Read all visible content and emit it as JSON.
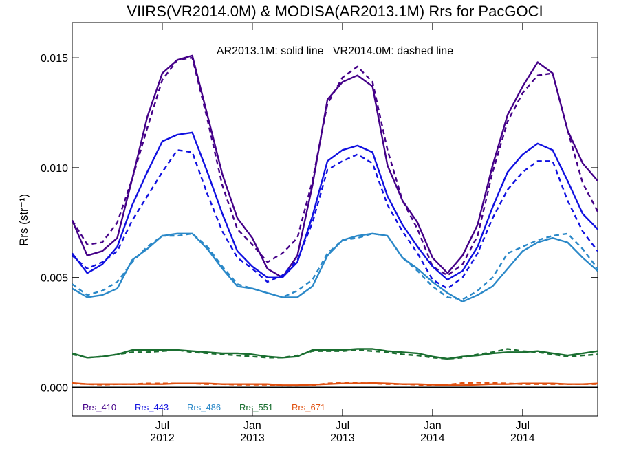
{
  "chart_data": {
    "type": "line",
    "title": "VIIRS(VR2014.0M) & MODISA(AR2013.1M)  Rrs for PacGOCI",
    "annotation": "AR2013.1M: solid line   VR2014.0M: dashed line",
    "ylabel": "Rrs (str⁻¹)",
    "ylim": [
      -0.0013,
      0.0166
    ],
    "yticks": [
      "0.000",
      "0.005",
      "0.010",
      "0.015"
    ],
    "ytick_values": [
      0,
      0.005,
      0.01,
      0.015
    ],
    "x": [
      "2012-01",
      "2012-02",
      "2012-03",
      "2012-04",
      "2012-05",
      "2012-06",
      "2012-07",
      "2012-08",
      "2012-09",
      "2012-10",
      "2012-11",
      "2012-12",
      "2013-01",
      "2013-02",
      "2013-03",
      "2013-04",
      "2013-05",
      "2013-06",
      "2013-07",
      "2013-08",
      "2013-09",
      "2013-10",
      "2013-11",
      "2013-12",
      "2014-01",
      "2014-02",
      "2014-03",
      "2014-04",
      "2014-05",
      "2014-06",
      "2014-07",
      "2014-08",
      "2014-09",
      "2014-10",
      "2014-11",
      "2014-12"
    ],
    "xlim": [
      "2012-01",
      "2014-12"
    ],
    "xticks": [
      {
        "month": "Jul",
        "year": "2012",
        "x": "2012-07"
      },
      {
        "month": "Jan",
        "year": "2013",
        "x": "2013-01"
      },
      {
        "month": "Jul",
        "year": "2013",
        "x": "2013-07"
      },
      {
        "month": "Jan",
        "year": "2014",
        "x": "2014-01"
      },
      {
        "month": "Jul",
        "year": "2014",
        "x": "2014-07"
      }
    ],
    "series": [
      {
        "name": "Rrs_410",
        "color": "#440088",
        "style": "solid",
        "values": [
          0.0076,
          0.006,
          0.0062,
          0.0068,
          0.0095,
          0.0123,
          0.0143,
          0.0149,
          0.0151,
          0.0124,
          0.0097,
          0.0077,
          0.0068,
          0.0054,
          0.005,
          0.006,
          0.0092,
          0.0131,
          0.0139,
          0.0142,
          0.0137,
          0.0101,
          0.0085,
          0.0075,
          0.0059,
          0.0052,
          0.006,
          0.0074,
          0.0101,
          0.0124,
          0.0137,
          0.0148,
          0.0143,
          0.0117,
          0.0102,
          0.0094
        ]
      },
      {
        "name": "Rrs_410",
        "color": "#440088",
        "style": "dashed",
        "values": [
          0.0076,
          0.0065,
          0.0066,
          0.0075,
          0.0095,
          0.0118,
          0.014,
          0.0149,
          0.015,
          0.0122,
          0.0092,
          0.0072,
          0.0065,
          0.0057,
          0.0061,
          0.0068,
          0.0094,
          0.0129,
          0.0141,
          0.0146,
          0.0139,
          0.0108,
          0.0085,
          0.0072,
          0.0055,
          0.0051,
          0.0056,
          0.0069,
          0.0098,
          0.0121,
          0.0134,
          0.0142,
          0.0143,
          0.0117,
          0.0093,
          0.008
        ]
      },
      {
        "name": "Rrs_443",
        "color": "#1010e0",
        "style": "solid",
        "values": [
          0.0061,
          0.0052,
          0.0056,
          0.0064,
          0.0083,
          0.0098,
          0.0112,
          0.0115,
          0.0116,
          0.0098,
          0.0079,
          0.0062,
          0.0055,
          0.005,
          0.005,
          0.0057,
          0.0078,
          0.0103,
          0.0108,
          0.011,
          0.0107,
          0.0087,
          0.0074,
          0.0064,
          0.0055,
          0.0049,
          0.0053,
          0.0064,
          0.0082,
          0.0098,
          0.0106,
          0.0111,
          0.0108,
          0.0094,
          0.0079,
          0.0072
        ]
      },
      {
        "name": "Rrs_443",
        "color": "#1010e0",
        "style": "dashed",
        "values": [
          0.006,
          0.0054,
          0.0057,
          0.0062,
          0.0076,
          0.0087,
          0.0098,
          0.0108,
          0.0107,
          0.0088,
          0.0071,
          0.0059,
          0.0054,
          0.0048,
          0.0051,
          0.0058,
          0.0075,
          0.0099,
          0.0103,
          0.0106,
          0.0102,
          0.0083,
          0.0071,
          0.0061,
          0.0049,
          0.0045,
          0.005,
          0.0061,
          0.0077,
          0.009,
          0.0098,
          0.0103,
          0.0103,
          0.0085,
          0.0071,
          0.0062
        ]
      },
      {
        "name": "Rrs_486",
        "color": "#2a88c8",
        "style": "solid",
        "values": [
          0.0045,
          0.0041,
          0.0042,
          0.0045,
          0.0058,
          0.0063,
          0.0069,
          0.007,
          0.007,
          0.0063,
          0.0054,
          0.0046,
          0.0045,
          0.0043,
          0.0041,
          0.0041,
          0.0046,
          0.006,
          0.0067,
          0.0069,
          0.007,
          0.0069,
          0.0059,
          0.0054,
          0.0048,
          0.0043,
          0.0039,
          0.0042,
          0.0046,
          0.0054,
          0.0062,
          0.0066,
          0.0068,
          0.0066,
          0.0059,
          0.0053
        ]
      },
      {
        "name": "Rrs_486",
        "color": "#2a88c8",
        "style": "dashed",
        "values": [
          0.0047,
          0.0042,
          0.0044,
          0.0048,
          0.0057,
          0.0064,
          0.0069,
          0.0069,
          0.007,
          0.0064,
          0.0055,
          0.0047,
          0.0045,
          0.0043,
          0.0041,
          0.0044,
          0.0049,
          0.0061,
          0.0067,
          0.0068,
          0.007,
          0.0069,
          0.0059,
          0.0053,
          0.0046,
          0.0041,
          0.004,
          0.0044,
          0.005,
          0.0061,
          0.0064,
          0.0067,
          0.0069,
          0.007,
          0.0063,
          0.0054
        ]
      },
      {
        "name": "Rrs_551",
        "color": "#1a6e30",
        "style": "solid",
        "values": [
          0.00155,
          0.00135,
          0.0014,
          0.0015,
          0.0017,
          0.0017,
          0.0017,
          0.0017,
          0.00165,
          0.0016,
          0.00155,
          0.00155,
          0.0015,
          0.0014,
          0.00135,
          0.0014,
          0.0017,
          0.0017,
          0.0017,
          0.00175,
          0.00175,
          0.00165,
          0.0016,
          0.00155,
          0.0014,
          0.0013,
          0.0014,
          0.00145,
          0.00155,
          0.0016,
          0.0016,
          0.00165,
          0.00155,
          0.00145,
          0.00155,
          0.00165
        ]
      },
      {
        "name": "Rrs_551",
        "color": "#1a6e30",
        "style": "dashed",
        "values": [
          0.0015,
          0.00135,
          0.0014,
          0.0015,
          0.0016,
          0.0016,
          0.00165,
          0.0017,
          0.0016,
          0.00155,
          0.0015,
          0.00145,
          0.0014,
          0.00135,
          0.00135,
          0.00145,
          0.00165,
          0.00165,
          0.00165,
          0.0017,
          0.00165,
          0.0016,
          0.0015,
          0.00145,
          0.00135,
          0.0013,
          0.00135,
          0.0015,
          0.0016,
          0.00175,
          0.00165,
          0.0016,
          0.0015,
          0.0014,
          0.00145,
          0.0015
        ]
      },
      {
        "name": "Rrs_671",
        "color": "#e05010",
        "style": "solid",
        "values": [
          0.0002,
          0.00015,
          0.00015,
          0.00015,
          0.00015,
          0.00015,
          0.00015,
          0.00018,
          0.00018,
          0.00018,
          0.00015,
          0.00015,
          0.00015,
          0.00015,
          0.0001,
          0.0001,
          0.00012,
          0.00015,
          0.00018,
          0.00018,
          0.0002,
          0.00018,
          0.00015,
          0.00015,
          0.00012,
          0.0001,
          0.0001,
          0.00012,
          0.00015,
          0.00015,
          0.00018,
          0.00018,
          0.00018,
          0.00015,
          0.00015,
          0.00018
        ]
      },
      {
        "name": "Rrs_671",
        "color": "#e05010",
        "style": "dashed",
        "values": [
          0.00018,
          0.00015,
          0.00012,
          0.00015,
          0.00015,
          0.00018,
          0.00018,
          0.00018,
          0.00018,
          0.00015,
          0.00015,
          0.00012,
          0.00012,
          0.00012,
          8e-05,
          8e-05,
          0.0001,
          0.00018,
          0.0002,
          0.0002,
          0.00018,
          0.00015,
          0.00015,
          0.00012,
          0.0001,
          0.00012,
          0.0002,
          0.00022,
          0.0002,
          0.00018,
          0.00015,
          0.00015,
          0.00015,
          0.00015,
          0.00015,
          0.00015
        ]
      }
    ],
    "legend": [
      {
        "label": "Rrs_410",
        "color": "#440088"
      },
      {
        "label": "Rrs_443",
        "color": "#1010e0"
      },
      {
        "label": "Rrs_486",
        "color": "#2a88c8"
      },
      {
        "label": "Rrs_551",
        "color": "#1a6e30"
      },
      {
        "label": "Rrs_671",
        "color": "#e05010"
      }
    ],
    "legend_position": "bottom-left",
    "grid": false,
    "zero_line": true
  }
}
